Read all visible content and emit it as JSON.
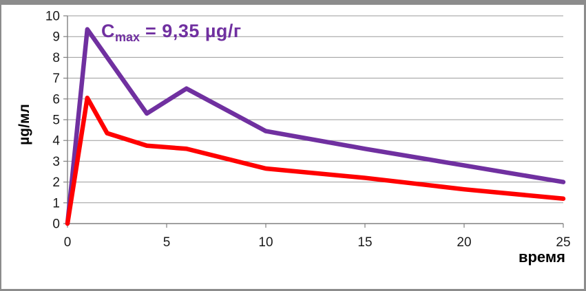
{
  "theme": {
    "background": "#FFFFFF",
    "frame_border": "#8C8C8C",
    "grid_color": "#9A9A9A",
    "axis_color": "#808080",
    "tick_label_color": "#1A1A1A",
    "purple": "#7030A0",
    "red": "#FF0000"
  },
  "annotation": {
    "prefix": "C",
    "subscript": "max",
    "rest": " = 9,35 µg/г",
    "color": "#7030A0"
  },
  "y_axis": {
    "title": "µg/мл",
    "ticks": [
      "0",
      "1",
      "2",
      "3",
      "4",
      "5",
      "6",
      "7",
      "8",
      "9",
      "10"
    ]
  },
  "x_axis": {
    "title": "время",
    "ticks": [
      "0",
      "5",
      "10",
      "15",
      "20",
      "25"
    ]
  },
  "chart_data": {
    "type": "line",
    "title": "",
    "xlabel": "время",
    "ylabel": "µg/мл",
    "xlim": [
      0,
      25
    ],
    "ylim": [
      0,
      10
    ],
    "grid": "horizontal-only",
    "legend": "none",
    "annotation_text": "Cmax = 9,35 µg/г",
    "series": [
      {
        "name": "upper-purple-curve",
        "color": "#7030A0",
        "x": [
          0,
          1,
          4,
          6,
          10,
          15,
          20,
          25
        ],
        "y": [
          0,
          9.35,
          5.3,
          6.5,
          4.45,
          3.6,
          2.8,
          2.0
        ]
      },
      {
        "name": "lower-red-curve",
        "color": "#FF0000",
        "x": [
          0,
          1,
          2,
          4,
          6,
          10,
          15,
          20,
          25
        ],
        "y": [
          0,
          6.05,
          4.35,
          3.75,
          3.6,
          2.65,
          2.2,
          1.65,
          1.2
        ]
      }
    ]
  }
}
